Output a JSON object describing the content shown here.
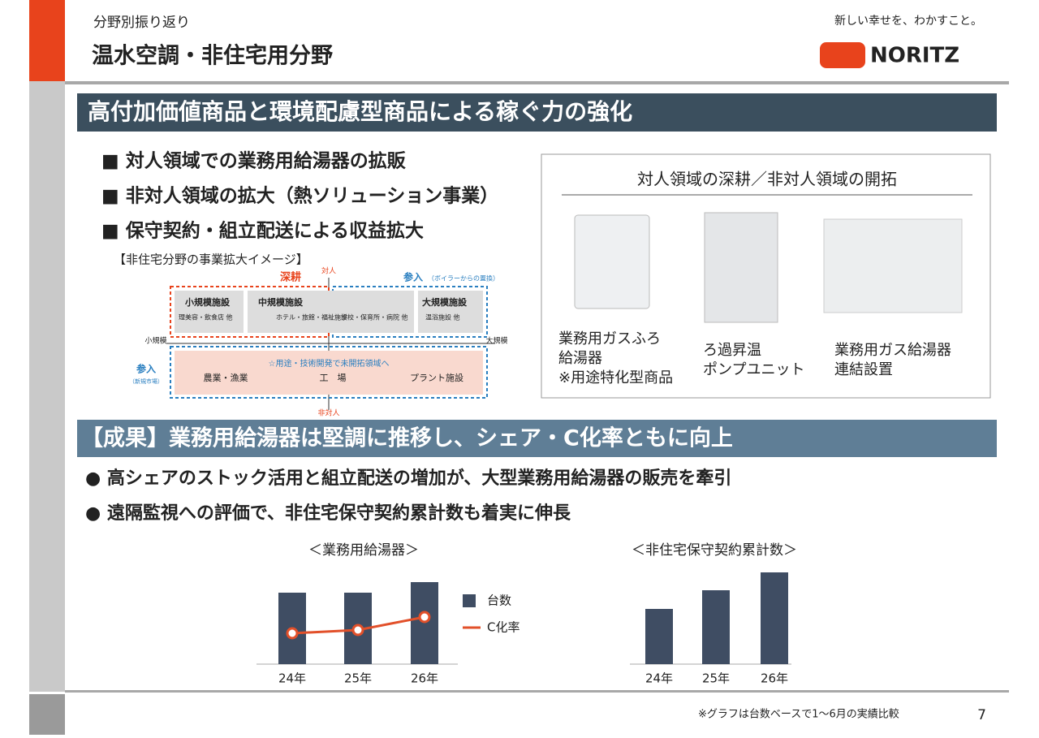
{
  "header": {
    "section": "分野別振り返り",
    "title": "温水空調・非住宅用分野",
    "tagline": "新しい幸せを、わかすこと。",
    "logo": "NORITZ"
  },
  "banner1": "高付加価値商品と環境配慮型商品による稼ぐ力の強化",
  "bullets1": [
    "■ 対人領域での業務用給湯器の拡販",
    "■ 非対人領域の拡大（熱ソリューション事業）",
    "■ 保守契約・組立配送による収益拡大"
  ],
  "image_caption": "【非住宅分野の事業拡大イメージ】",
  "diagram": {
    "top": "対人",
    "bottom": "非対人",
    "left": "小規模",
    "right": "大規模",
    "deepen": "深耕",
    "enter_top": "参入",
    "enter_top_note": "（ボイラーからの置換）",
    "enter_left": "参入",
    "enter_left_note": "（新規市場）",
    "small": "小規模施設",
    "small_note": "理美容・飲食店 他",
    "medium": "中規模施設",
    "medium_note": "ホテル・旅館・福祉施設",
    "medium_note2": "学校・保育所・病院 他",
    "large": "大規模施設",
    "large_note": "温浴施設 他",
    "new_area": "☆用途・技術開発で未開拓領域へ",
    "agri": "農業・漁業",
    "factory": "工　場",
    "plant": "プラント施設"
  },
  "products": {
    "title": "対人領域の深耕／非対人領域の開拓",
    "items": [
      [
        "業務用ガスふろ",
        "給湯器",
        "※用途特化型商品"
      ],
      [
        "ろ過昇温",
        "ポンプユニット"
      ],
      [
        "業務用ガス給湯器",
        "連結設置"
      ]
    ]
  },
  "banner2": "【成果】業務用給湯器は堅調に推移し、シェア・C化率ともに向上",
  "bullets2": [
    "● 高シェアのストック活用と組立配送の増加が、大型業務用給湯器の販売を牽引",
    "● 遠隔監視への評価で、非住宅保守契約累計数も着実に伸長"
  ],
  "chart_data": [
    {
      "type": "bar",
      "title": "＜業務用給湯器＞",
      "categories": [
        "24年",
        "25年",
        "26年"
      ],
      "ylim": [
        0,
        110
      ],
      "series": [
        {
          "name": "台数",
          "color": "#3f4d63",
          "values": [
            88,
            88,
            101
          ]
        },
        {
          "name": "C化率",
          "color": "#e2502a",
          "type": "line",
          "values": [
            38,
            42,
            58
          ]
        }
      ]
    },
    {
      "type": "bar",
      "title": "＜非住宅保守契約累計数＞",
      "categories": [
        "24年",
        "25年",
        "26年"
      ],
      "ylim": [
        0,
        120
      ],
      "series": [
        {
          "color": "#3f4d63",
          "values": [
            68,
            91,
            113
          ]
        }
      ]
    }
  ],
  "footnote": "※グラフは台数ベースで1～6月の実績比較",
  "page_number": "7"
}
